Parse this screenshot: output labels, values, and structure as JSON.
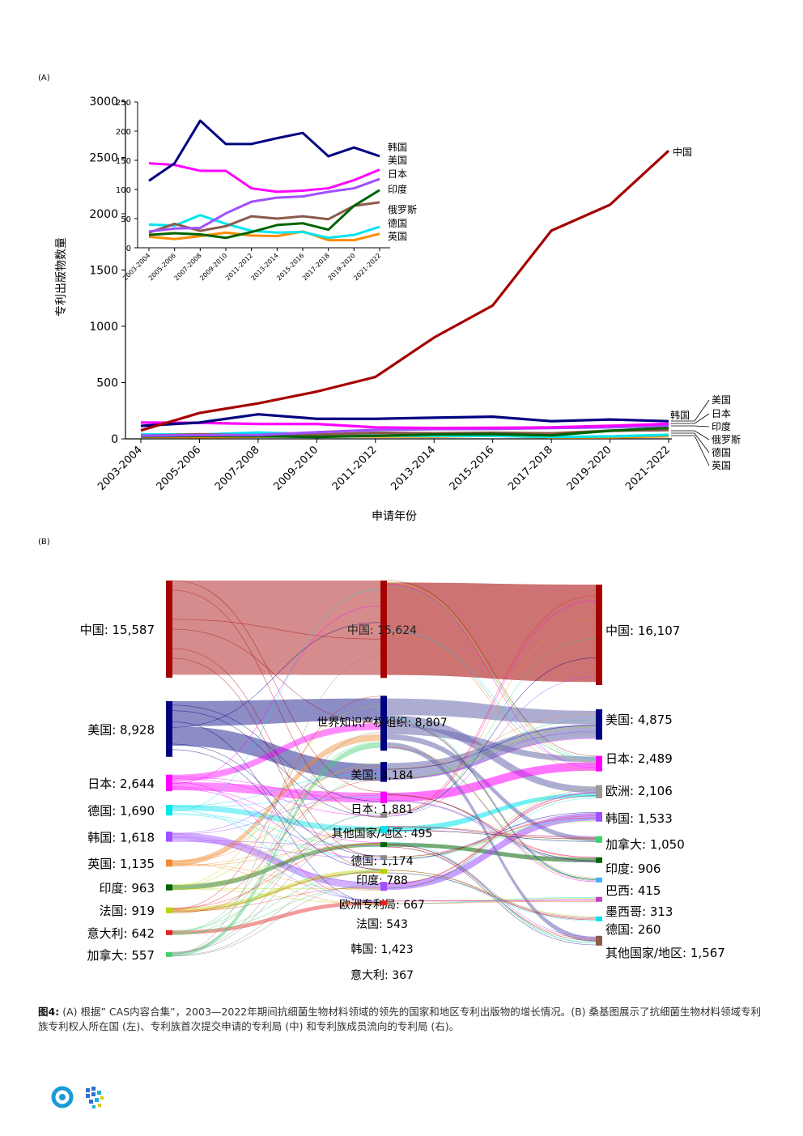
{
  "panel_a_label": "(A)",
  "panel_b_label": "(B)",
  "caption": {
    "label": "图4:",
    "text": "(A) 根据” CAS内容合集”，2003—2022年期间抗细菌生物材料领域的领先的国家和地区专利出版物的增长情况。(B) 桑基图展示了抗细菌生物材料领域专利族专利权人所在国 (左)、专利族首次提交申请的专利局 (中) 和专利族成员流向的专利局 (右)。"
  },
  "chart_data": [
    {
      "type": "line",
      "xlabel": "申请年份",
      "ylabel": "专利出版物数量",
      "ylim": [
        0,
        3000
      ],
      "yticks": [
        0,
        500,
        1000,
        1500,
        2000,
        2500,
        3000
      ],
      "categories": [
        "2003-2004",
        "2005-2006",
        "2007-2008",
        "2009-2010",
        "2011-2012",
        "2013-2014",
        "2015-2016",
        "2017-2018",
        "2019-2020",
        "2021-2022"
      ],
      "series": [
        {
          "name": "中国",
          "color": "#a50000",
          "values": [
            75,
            230,
            315,
            420,
            550,
            900,
            1185,
            1850,
            2080,
            2560
          ]
        },
        {
          "name": "韩国",
          "color": "#000080",
          "values": [
            115,
            145,
            218,
            178,
            178,
            188,
            197,
            157,
            172,
            157
          ]
        },
        {
          "name": "美国",
          "color": "#ff00ff",
          "values": [
            145,
            142,
            132,
            132,
            102,
            96,
            98,
            102,
            116,
            134
          ]
        },
        {
          "name": "日本",
          "color": "#a050ff",
          "values": [
            28,
            33,
            34,
            59,
            79,
            86,
            88,
            96,
            102,
            118
          ]
        },
        {
          "name": "印度",
          "color": "#006400",
          "values": [
            22,
            25,
            23,
            17,
            27,
            39,
            42,
            31,
            72,
            99
          ]
        },
        {
          "name": "俄罗斯",
          "color": "#8b5a4a",
          "values": [
            26,
            41,
            29,
            37,
            54,
            50,
            54,
            49,
            72,
            78
          ]
        },
        {
          "name": "德国",
          "color": "#00e5ee",
          "values": [
            40,
            38,
            56,
            41,
            29,
            26,
            27,
            17,
            22,
            36
          ]
        },
        {
          "name": "英国",
          "color": "#ff8c00",
          "values": [
            19,
            15,
            20,
            26,
            21,
            20,
            28,
            13,
            13,
            24
          ]
        }
      ],
      "legend_right": [
        "中国",
        "韩国",
        "美国",
        "日本",
        "印度",
        "俄罗斯",
        "德国",
        "英国"
      ],
      "inset": {
        "ylim": [
          0,
          250
        ],
        "yticks": [
          0,
          50,
          100,
          150,
          200,
          250
        ],
        "categories": [
          "2003-2004",
          "2005-2006",
          "2007-2008",
          "2009-2010",
          "2011-2012",
          "2013-2014",
          "2015-2016",
          "2017-2018",
          "2019-2020",
          "2021-2022"
        ],
        "series": [
          {
            "name": "韩国",
            "color": "#000080",
            "values": [
              115,
              145,
              218,
              178,
              178,
              188,
              197,
              157,
              172,
              157
            ]
          },
          {
            "name": "美国",
            "color": "#ff00ff",
            "values": [
              145,
              142,
              132,
              132,
              102,
              96,
              98,
              102,
              116,
              134
            ]
          },
          {
            "name": "日本",
            "color": "#a050ff",
            "values": [
              28,
              33,
              34,
              59,
              79,
              86,
              88,
              96,
              102,
              118
            ]
          },
          {
            "name": "印度",
            "color": "#006400",
            "values": [
              22,
              25,
              23,
              17,
              27,
              39,
              42,
              31,
              72,
              99
            ]
          },
          {
            "name": "俄罗斯",
            "color": "#8b5a4a",
            "values": [
              26,
              41,
              29,
              37,
              54,
              50,
              54,
              49,
              72,
              78
            ]
          },
          {
            "name": "德国",
            "color": "#00e5ee",
            "values": [
              40,
              38,
              56,
              41,
              29,
              26,
              27,
              17,
              22,
              36
            ]
          },
          {
            "name": "英国",
            "color": "#ff8c00",
            "values": [
              19,
              15,
              20,
              26,
              21,
              20,
              28,
              13,
              13,
              24
            ]
          }
        ],
        "labels": [
          "韩国",
          "美国",
          "日本",
          "印度",
          "俄罗斯",
          "德国",
          "英国"
        ]
      }
    },
    {
      "type": "sankey",
      "left": [
        {
          "label": "中国: 15,587",
          "value": 15587,
          "color": "#a50000"
        },
        {
          "label": "美国: 8,928",
          "value": 8928,
          "color": "#000080"
        },
        {
          "label": "日本: 2,644",
          "value": 2644,
          "color": "#ff00ff"
        },
        {
          "label": "德国: 1,690",
          "value": 1690,
          "color": "#00e5ee"
        },
        {
          "label": "韩国: 1,618",
          "value": 1618,
          "color": "#a050ff"
        },
        {
          "label": "英国: 1,135",
          "value": 1135,
          "color": "#f08c30"
        },
        {
          "label": "印度: 963",
          "value": 963,
          "color": "#006400"
        },
        {
          "label": "法国: 919",
          "value": 919,
          "color": "#b8d400"
        },
        {
          "label": "意大利: 642",
          "value": 642,
          "color": "#e82020"
        },
        {
          "label": "加拿大: 557",
          "value": 557,
          "color": "#40d070"
        }
      ],
      "middle": [
        {
          "label": "中国: 15,624",
          "value": 15624,
          "color": "#a50000"
        },
        {
          "label": "世界知识产权组织: 8,807",
          "value": 8807,
          "color": "#000080"
        },
        {
          "label": "美国: 3,184",
          "value": 3184,
          "color": "#000080"
        },
        {
          "label": "日本: 1,881",
          "value": 1881,
          "color": "#ff00ff"
        },
        {
          "label": "其他国家/地区: 495",
          "value": 495,
          "color": "#888888"
        },
        {
          "label": "德国: 1,174",
          "value": 1174,
          "color": "#00e5ee"
        },
        {
          "label": "印度: 788",
          "value": 788,
          "color": "#006400"
        },
        {
          "label": "欧洲专利局: 667",
          "value": 667,
          "color": "#888888"
        },
        {
          "label": "法国: 543",
          "value": 543,
          "color": "#b8d400"
        },
        {
          "label": "韩国: 1,423",
          "value": 1423,
          "color": "#a050ff"
        },
        {
          "label": "意大利: 367",
          "value": 367,
          "color": "#e82020"
        }
      ],
      "right": [
        {
          "label": "中国: 16,107",
          "value": 16107,
          "color": "#a50000"
        },
        {
          "label": "美国: 4,875",
          "value": 4875,
          "color": "#000080"
        },
        {
          "label": "日本: 2,489",
          "value": 2489,
          "color": "#ff00ff"
        },
        {
          "label": "欧洲: 2,106",
          "value": 2106,
          "color": "#9a9a9a"
        },
        {
          "label": "韩国: 1,533",
          "value": 1533,
          "color": "#a050ff"
        },
        {
          "label": "加拿大: 1,050",
          "value": 1050,
          "color": "#40d070"
        },
        {
          "label": "印度: 906",
          "value": 906,
          "color": "#006400"
        },
        {
          "label": "巴西: 415",
          "value": 415,
          "color": "#40b0ff"
        },
        {
          "label": "墨西哥: 313",
          "value": 313,
          "color": "#c040c0"
        },
        {
          "label": "德国: 260",
          "value": 260,
          "color": "#00e5ee"
        },
        {
          "label": "其他国家/地区: 1,567",
          "value": 1567,
          "color": "#8b5a4a"
        }
      ]
    }
  ]
}
